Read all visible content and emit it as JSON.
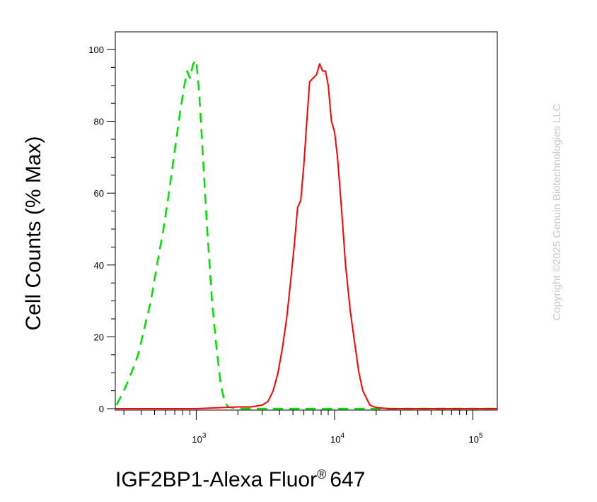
{
  "chart_data": {
    "type": "line",
    "title": "",
    "xlabel": "IGF2BP1-Alexa Fluor",
    "xlabel_mark": "®",
    "xlabel_suffix": "647",
    "ylabel": "Cell Counts (% Max)",
    "x_scale": "log",
    "xlim": [
      260,
      150000
    ],
    "ylim": [
      0,
      105
    ],
    "y_ticks": [
      0,
      20,
      40,
      60,
      80,
      100
    ],
    "x_tick_labels": [
      {
        "value": 1000,
        "base": "10",
        "exp": "3"
      },
      {
        "value": 10000,
        "base": "10",
        "exp": "4"
      },
      {
        "value": 100000,
        "base": "10",
        "exp": "5"
      }
    ],
    "grid": false,
    "legend": "none",
    "series": [
      {
        "color": "#00e000",
        "style": "dashed",
        "x": [
          265,
          300,
          340,
          380,
          420,
          470,
          520,
          580,
          640,
          700,
          760,
          820,
          860,
          900,
          950,
          1000,
          1050,
          1100,
          1150,
          1200,
          1300,
          1400,
          1500,
          1600,
          1700,
          2000,
          3000,
          5000,
          10000,
          20000,
          50000,
          100000,
          150000
        ],
        "values": [
          1,
          5,
          10,
          15,
          22,
          30,
          40,
          50,
          61,
          72,
          82,
          90,
          94,
          92,
          96,
          97,
          88,
          75,
          62,
          50,
          30,
          17,
          7,
          2,
          0.5,
          0,
          0,
          0,
          0,
          0,
          0,
          0,
          0
        ]
      },
      {
        "color": "#ff0000",
        "style": "solid",
        "x": [
          260,
          1000,
          2000,
          2500,
          3000,
          3300,
          3600,
          3900,
          4200,
          4500,
          4800,
          5100,
          5400,
          5700,
          6000,
          6300,
          6600,
          7000,
          7400,
          7800,
          8200,
          8600,
          9000,
          9500,
          10000,
          10500,
          11000,
          11500,
          12000,
          13000,
          14000,
          15000,
          16000,
          18000,
          20000,
          25000,
          30000,
          50000,
          100000,
          150000
        ],
        "values": [
          0,
          0,
          0.5,
          0.5,
          1,
          2,
          5,
          10,
          17,
          25,
          35,
          45,
          56,
          58,
          68,
          80,
          91,
          92,
          93,
          96,
          94,
          94,
          90,
          80,
          77,
          70,
          60,
          50,
          40,
          27,
          18,
          10,
          5,
          1,
          0.3,
          0,
          0,
          0,
          0,
          0
        ]
      }
    ]
  },
  "watermark": "Copyright ©2025 Genuin Biotechnologies LLC"
}
